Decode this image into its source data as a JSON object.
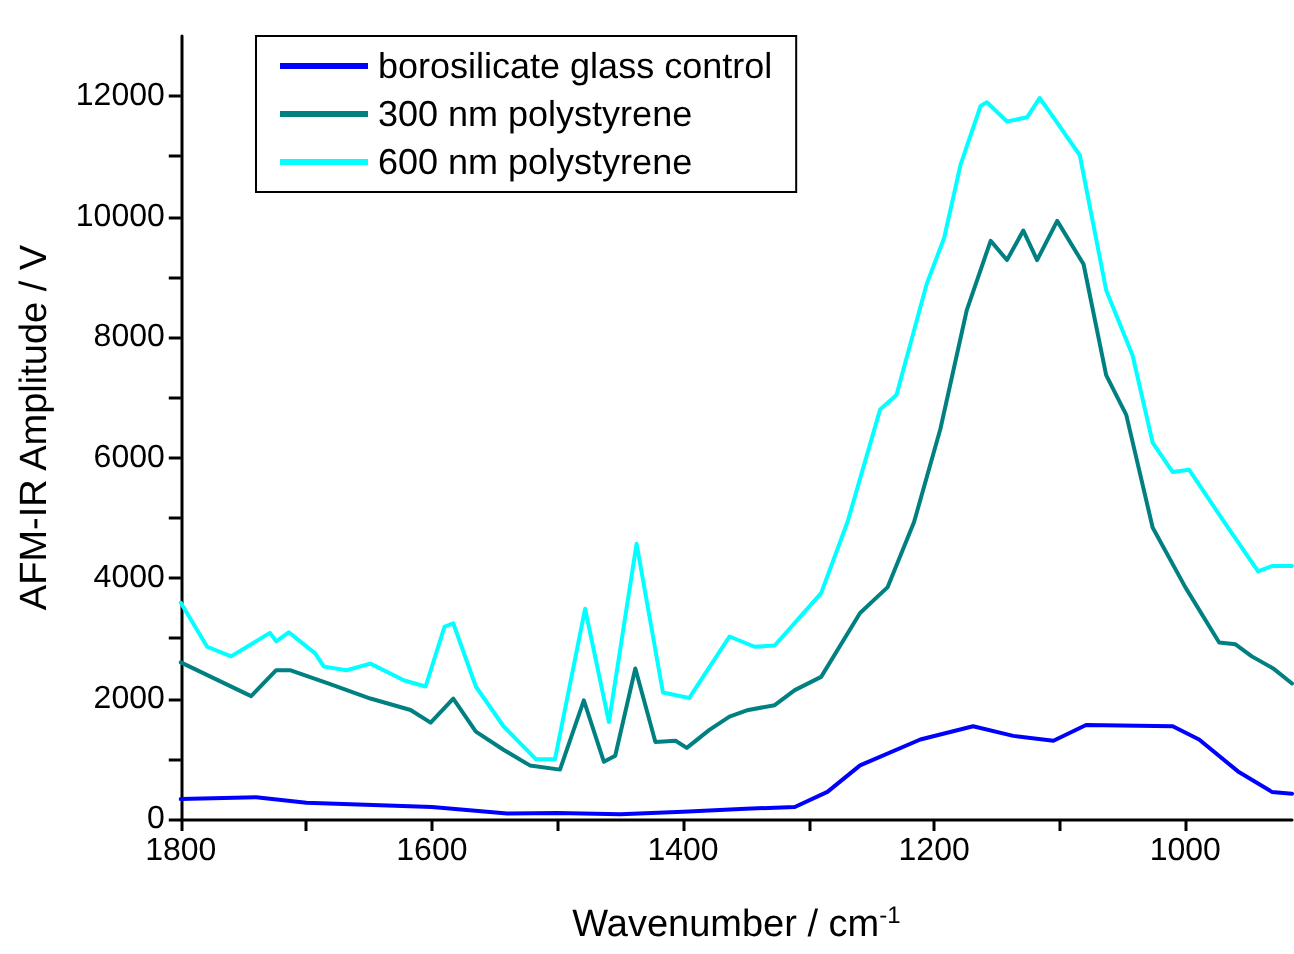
{
  "chart_data": {
    "type": "line",
    "xlabel": "Wavenumber / cm$^{-1}$",
    "ylabel": "AFM-IR Amplitude / V",
    "xlim": [
      1800,
      915
    ],
    "xticks": [
      1800,
      {
        "value": 1700,
        "label": null
      },
      1600,
      {
        "value": 1500,
        "label": null
      },
      1400,
      {
        "value": 1300,
        "label": null
      },
      1200,
      {
        "value": 1100,
        "label": null
      },
      1000
    ],
    "ylim": [
      0,
      13000
    ],
    "yticks": [
      0,
      {
        "value": 1000,
        "label": null
      },
      2000,
      {
        "value": 3000,
        "label": null
      },
      4000,
      {
        "value": 5000,
        "label": null
      },
      6000,
      {
        "value": 7000,
        "label": null
      },
      8000,
      {
        "value": 9000,
        "label": null
      },
      10000,
      {
        "value": 11000,
        "label": null
      },
      12000
    ],
    "grid": false,
    "legend": "top left",
    "marker": "none",
    "line_style": "solid",
    "series": [
      {
        "name": "borosilicate glass control",
        "color": "#0000ff",
        "x": [
          1800,
          1740,
          1700,
          1600,
          1540,
          1500,
          1450,
          1400,
          1350,
          1311,
          1285,
          1259,
          1211,
          1169,
          1137,
          1105,
          1079,
          1010,
          989,
          958,
          931,
          915
        ],
        "values": [
          330,
          360,
          270,
          200,
          90,
          100,
          80,
          120,
          170,
          200,
          450,
          890,
          1320,
          1540,
          1380,
          1300,
          1560,
          1540,
          1320,
          790,
          450,
          420
        ]
      },
      {
        "name": "300 nm polystyrene",
        "color": "#008080",
        "x": [
          1800,
          1744,
          1724,
          1713,
          1681,
          1649,
          1617,
          1601,
          1583,
          1565,
          1543,
          1522,
          1498,
          1479,
          1463,
          1454,
          1438,
          1422,
          1406,
          1397,
          1379,
          1363,
          1348,
          1327,
          1311,
          1290,
          1259,
          1237,
          1216,
          1195,
          1174,
          1155,
          1142,
          1129,
          1118,
          1102,
          1081,
          1063,
          1047,
          1026,
          1000,
          973,
          960,
          947,
          930,
          915
        ],
        "values": [
          2600,
          2040,
          2470,
          2470,
          2240,
          2000,
          1810,
          1600,
          2000,
          1450,
          1150,
          890,
          820,
          1970,
          950,
          1050,
          2500,
          1280,
          1300,
          1180,
          1480,
          1700,
          1810,
          1890,
          2140,
          2360,
          3420,
          3850,
          4930,
          6480,
          8450,
          9600,
          9280,
          9770,
          9280,
          9930,
          9210,
          7370,
          6710,
          4840,
          3850,
          2930,
          2900,
          2700,
          2500,
          2250
        ]
      },
      {
        "name": "600 nm polystyrene",
        "color": "#00ffff",
        "x": [
          1800,
          1779,
          1760,
          1729,
          1724,
          1714,
          1693,
          1686,
          1668,
          1649,
          1622,
          1605,
          1590,
          1583,
          1565,
          1543,
          1517,
          1502,
          1478,
          1459,
          1437,
          1416,
          1395,
          1363,
          1343,
          1327,
          1290,
          1269,
          1243,
          1230,
          1206,
          1192,
          1179,
          1163,
          1158,
          1142,
          1126,
          1116,
          1105,
          1084,
          1063,
          1042,
          1026,
          1010,
          997,
          968,
          942,
          931,
          915
        ],
        "values": [
          3590,
          2860,
          2700,
          3090,
          2950,
          3100,
          2750,
          2530,
          2470,
          2580,
          2300,
          2200,
          3190,
          3250,
          2200,
          1540,
          990,
          990,
          3490,
          1610,
          4570,
          2100,
          2010,
          3030,
          2860,
          2880,
          3750,
          4930,
          6800,
          7040,
          8880,
          9650,
          10860,
          11840,
          11900,
          11580,
          11650,
          11970,
          11650,
          11020,
          8780,
          7700,
          6250,
          5760,
          5800,
          4900,
          4110,
          4200,
          4200
        ]
      }
    ]
  }
}
